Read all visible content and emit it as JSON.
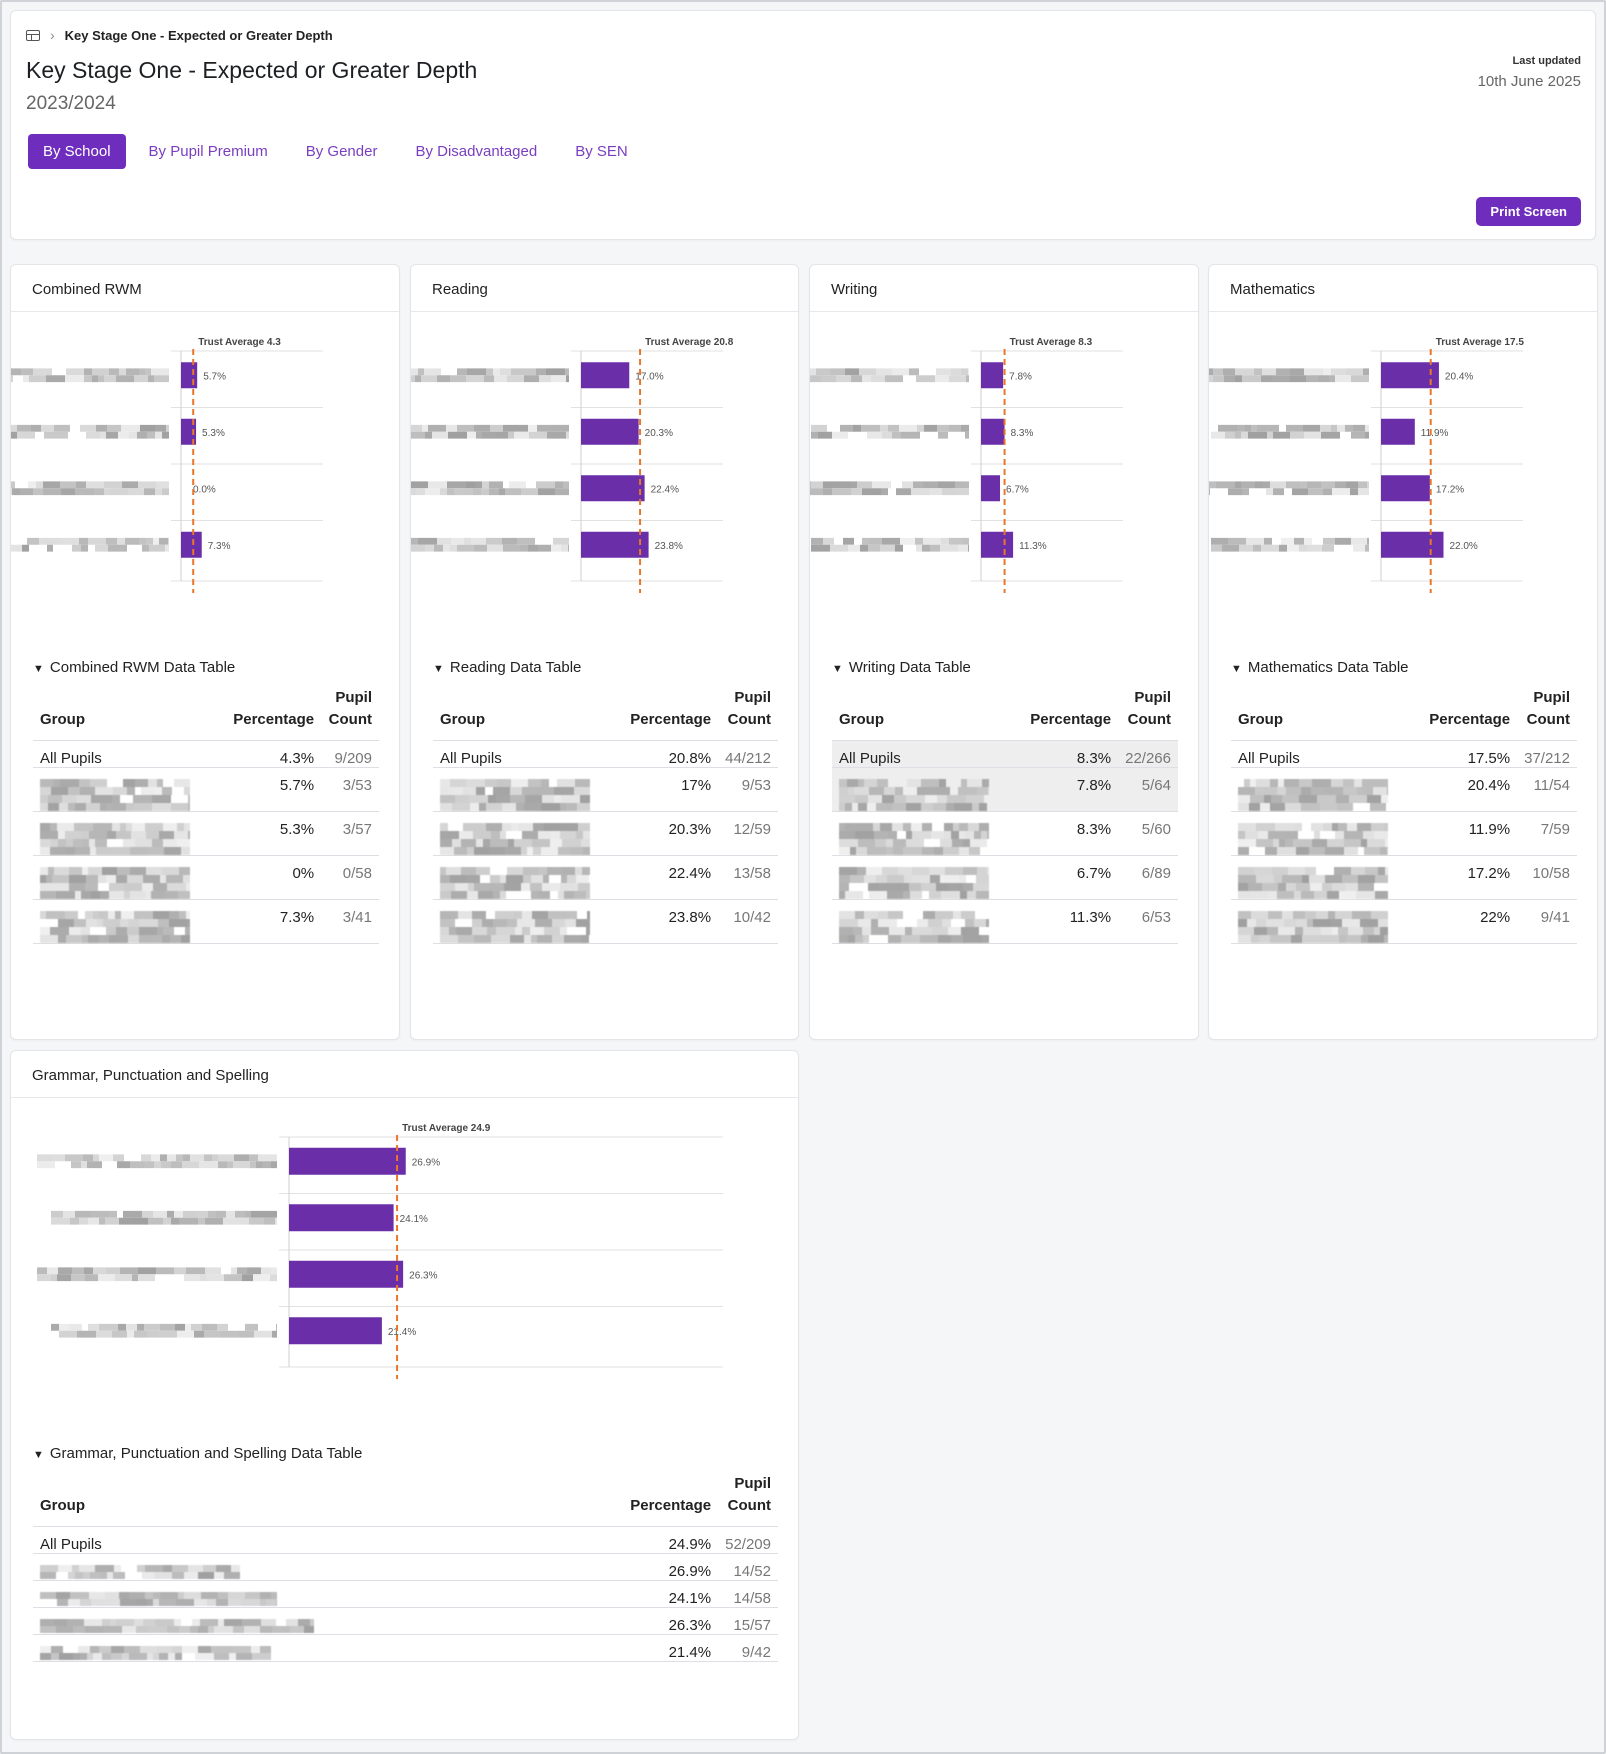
{
  "breadcrumb": {
    "icon": "table-icon",
    "current": "Key Stage One - Expected or Greater Depth"
  },
  "header": {
    "title": "Key Stage One - Expected or Greater Depth",
    "year": "2023/2024",
    "last_updated_label": "Last updated",
    "last_updated_value": "10th June 2025",
    "print_label": "Print Screen"
  },
  "tabs": [
    {
      "label": "By School",
      "active": true
    },
    {
      "label": "By Pupil Premium",
      "active": false
    },
    {
      "label": "By Gender",
      "active": false
    },
    {
      "label": "By Disadvantaged",
      "active": false
    },
    {
      "label": "By SEN",
      "active": false
    }
  ],
  "colors": {
    "accent": "#6f2dbd",
    "bar": "#6a2ea8",
    "average_line": "#e8762b"
  },
  "panels": [
    {
      "title": "Combined RWM",
      "table_toggle": "Combined RWM Data Table",
      "headers": {
        "group": "Group",
        "percentage": "Percentage",
        "count": "Pupil Count"
      },
      "all_pupils": {
        "group": "All Pupils",
        "percentage": "4.3%",
        "count": "9/209"
      },
      "rows": [
        {
          "percentage": "5.7%",
          "count": "3/53"
        },
        {
          "percentage": "5.3%",
          "count": "3/57"
        },
        {
          "percentage": "0%",
          "count": "0/58"
        },
        {
          "percentage": "7.3%",
          "count": "3/41"
        }
      ]
    },
    {
      "title": "Reading",
      "table_toggle": "Reading Data Table",
      "headers": {
        "group": "Group",
        "percentage": "Percentage",
        "count": "Pupil Count"
      },
      "all_pupils": {
        "group": "All Pupils",
        "percentage": "20.8%",
        "count": "44/212"
      },
      "rows": [
        {
          "percentage": "17%",
          "count": "9/53"
        },
        {
          "percentage": "20.3%",
          "count": "12/59"
        },
        {
          "percentage": "22.4%",
          "count": "13/58"
        },
        {
          "percentage": "23.8%",
          "count": "10/42"
        }
      ]
    },
    {
      "title": "Writing",
      "table_toggle": "Writing Data Table",
      "headers": {
        "group": "Group",
        "percentage": "Percentage",
        "count": "Pupil Count"
      },
      "all_pupils": {
        "group": "All Pupils",
        "percentage": "8.3%",
        "count": "22/266"
      },
      "rows": [
        {
          "percentage": "7.8%",
          "count": "5/64"
        },
        {
          "percentage": "8.3%",
          "count": "5/60"
        },
        {
          "percentage": "6.7%",
          "count": "6/89"
        },
        {
          "percentage": "11.3%",
          "count": "6/53"
        }
      ]
    },
    {
      "title": "Mathematics",
      "table_toggle": "Mathematics Data Table",
      "headers": {
        "group": "Group",
        "percentage": "Percentage",
        "count": "Pupil Count"
      },
      "all_pupils": {
        "group": "All Pupils",
        "percentage": "17.5%",
        "count": "37/212"
      },
      "rows": [
        {
          "percentage": "20.4%",
          "count": "11/54"
        },
        {
          "percentage": "11.9%",
          "count": "7/59"
        },
        {
          "percentage": "17.2%",
          "count": "10/58"
        },
        {
          "percentage": "22%",
          "count": "9/41"
        }
      ]
    },
    {
      "title": "Grammar, Punctuation and Spelling",
      "table_toggle": "Grammar, Punctuation and Spelling Data Table",
      "headers": {
        "group": "Group",
        "percentage": "Percentage",
        "count": "Pupil Count"
      },
      "all_pupils": {
        "group": "All Pupils",
        "percentage": "24.9%",
        "count": "52/209"
      },
      "rows": [
        {
          "percentage": "26.9%",
          "count": "14/52"
        },
        {
          "percentage": "24.1%",
          "count": "14/58"
        },
        {
          "percentage": "26.3%",
          "count": "15/57"
        },
        {
          "percentage": "21.4%",
          "count": "9/42"
        }
      ]
    }
  ],
  "chart_data": [
    {
      "type": "bar",
      "orientation": "horizontal",
      "title": "Combined RWM",
      "legend": "Percentage",
      "average_label": "Trust Average 4.3",
      "average": 4.3,
      "values": [
        5.7,
        5.3,
        0.0,
        7.3
      ],
      "value_labels": [
        "5.7%",
        "5.3%",
        "0.0%",
        "7.3%"
      ],
      "xlim": [
        0,
        50
      ]
    },
    {
      "type": "bar",
      "orientation": "horizontal",
      "title": "Reading",
      "legend": "Percentage",
      "average_label": "Trust Average 20.8",
      "average": 20.8,
      "values": [
        17.0,
        20.3,
        22.4,
        23.8
      ],
      "value_labels": [
        "17.0%",
        "20.3%",
        "22.4%",
        "23.8%"
      ],
      "xlim": [
        0,
        50
      ]
    },
    {
      "type": "bar",
      "orientation": "horizontal",
      "title": "Writing",
      "legend": "Percentage",
      "average_label": "Trust Average 8.3",
      "average": 8.3,
      "values": [
        7.8,
        8.3,
        6.7,
        11.3
      ],
      "value_labels": [
        "7.8%",
        "8.3%",
        "6.7%",
        "11.3%"
      ],
      "xlim": [
        0,
        50
      ]
    },
    {
      "type": "bar",
      "orientation": "horizontal",
      "title": "Mathematics",
      "legend": "Percentage",
      "average_label": "Trust Average 17.5",
      "average": 17.5,
      "values": [
        20.4,
        11.9,
        17.2,
        22.0
      ],
      "value_labels": [
        "20.4%",
        "11.9%",
        "17.2%",
        "22.0%"
      ],
      "xlim": [
        0,
        50
      ]
    },
    {
      "type": "bar",
      "orientation": "horizontal",
      "title": "Grammar, Punctuation and Spelling",
      "legend": "Percentage",
      "average_label": "Trust Average 24.9",
      "average": 24.9,
      "values": [
        26.9,
        24.1,
        26.3,
        21.4
      ],
      "value_labels": [
        "26.9%",
        "24.1%",
        "26.3%",
        "21.4%"
      ],
      "xlim": [
        0,
        100
      ]
    }
  ]
}
